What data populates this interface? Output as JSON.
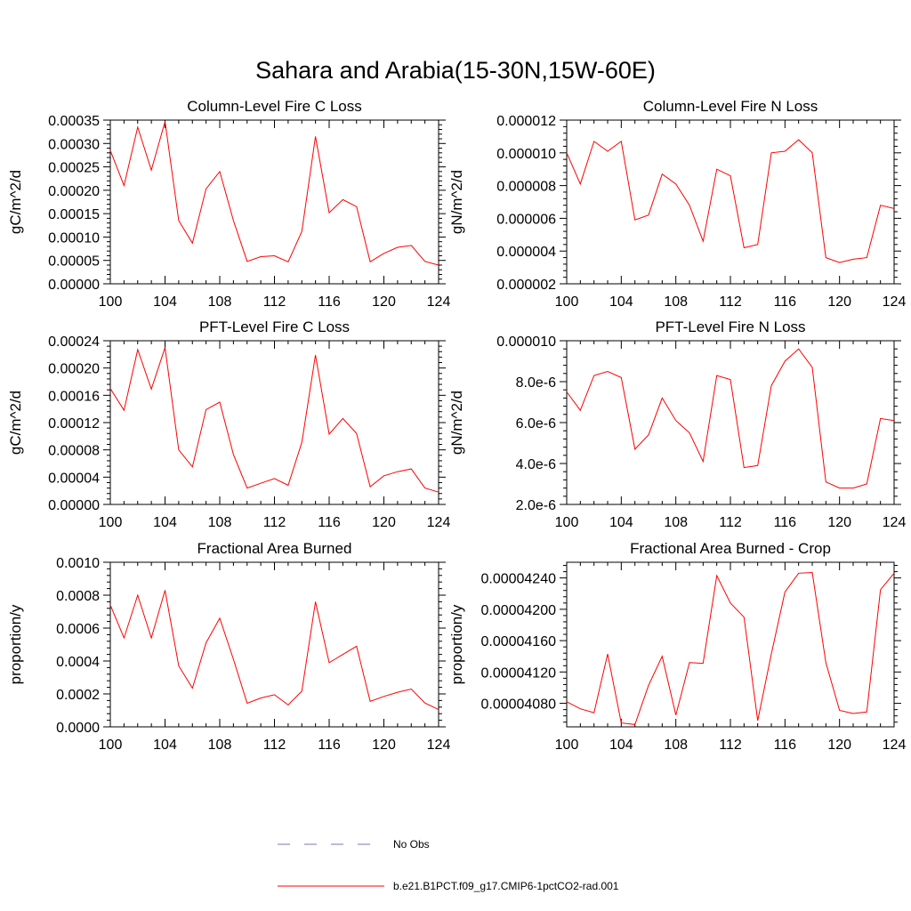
{
  "figure": {
    "title": "Sahara and Arabia(15-30N,15W-60E)",
    "legend": [
      {
        "label": "No Obs",
        "color": "#7777bb",
        "dashed": true
      },
      {
        "label": "b.e21.B1PCT.f09_g17.CMIP6-1pctCO2-rad.001",
        "color": "#ff0000",
        "dashed": false
      }
    ]
  },
  "chart_data": [
    {
      "type": "line",
      "title": "Column-Level Fire C Loss",
      "ylabel": "gC/m^2/d",
      "xlim": [
        100,
        124
      ],
      "ylim": [
        0,
        0.00035
      ],
      "xticks": [
        100,
        104,
        108,
        112,
        116,
        120,
        124
      ],
      "xtick_labels": [
        "100",
        "104",
        "108",
        "112",
        "116",
        "120",
        "124"
      ],
      "yticks": [
        0,
        5e-05,
        0.0001,
        0.00015,
        0.0002,
        0.00025,
        0.0003,
        0.00035
      ],
      "ytick_labels": [
        "0.00000",
        "0.00005",
        "0.00010",
        "0.00015",
        "0.00020",
        "0.00025",
        "0.00030",
        "0.00035"
      ],
      "color": "#ff0000",
      "x": [
        100,
        101,
        102,
        103,
        104,
        105,
        106,
        107,
        108,
        109,
        110,
        111,
        112,
        113,
        114,
        115,
        116,
        117,
        118,
        119,
        120,
        121,
        122,
        123,
        124
      ],
      "values": [
        0.000285,
        0.00021,
        0.000335,
        0.000243,
        0.000347,
        0.000135,
        8.7e-05,
        0.000203,
        0.00024,
        0.000135,
        4.8e-05,
        5.8e-05,
        6e-05,
        4.7e-05,
        0.000112,
        0.000315,
        0.000152,
        0.00018,
        0.000165,
        4.7e-05,
        6.5e-05,
        7.8e-05,
        8.2e-05,
        4.8e-05,
        4e-05
      ]
    },
    {
      "type": "line",
      "title": "Column-Level Fire N Loss",
      "ylabel": "gN/m^2/d",
      "xlim": [
        100,
        124
      ],
      "ylim": [
        2e-06,
        1.2e-05
      ],
      "xticks": [
        100,
        104,
        108,
        112,
        116,
        120,
        124
      ],
      "xtick_labels": [
        "100",
        "104",
        "108",
        "112",
        "116",
        "120",
        "124"
      ],
      "yticks": [
        2e-06,
        4e-06,
        6e-06,
        8e-06,
        1e-05,
        1.2e-05
      ],
      "ytick_labels": [
        "0.000002",
        "0.000004",
        "0.000006",
        "0.000008",
        "0.000010",
        "0.000012"
      ],
      "color": "#ff0000",
      "x": [
        100,
        101,
        102,
        103,
        104,
        105,
        106,
        107,
        108,
        109,
        110,
        111,
        112,
        113,
        114,
        115,
        116,
        117,
        118,
        119,
        120,
        121,
        122,
        123,
        124
      ],
      "values": [
        1e-05,
        8.1e-06,
        1.07e-05,
        1.01e-05,
        1.07e-05,
        5.9e-06,
        6.2e-06,
        8.7e-06,
        8.1e-06,
        6.8e-06,
        4.6e-06,
        9e-06,
        8.6e-06,
        4.2e-06,
        4.4e-06,
        1e-05,
        1.01e-05,
        1.08e-05,
        1e-05,
        3.6e-06,
        3.3e-06,
        3.5e-06,
        3.6e-06,
        6.8e-06,
        6.6e-06
      ]
    },
    {
      "type": "line",
      "title": "PFT-Level Fire C Loss",
      "ylabel": "gC/m^2/d",
      "xlim": [
        100,
        124
      ],
      "ylim": [
        0,
        0.00024
      ],
      "xticks": [
        100,
        104,
        108,
        112,
        116,
        120,
        124
      ],
      "xtick_labels": [
        "100",
        "104",
        "108",
        "112",
        "116",
        "120",
        "124"
      ],
      "yticks": [
        0,
        4e-05,
        8e-05,
        0.00012,
        0.00016,
        0.0002,
        0.00024
      ],
      "ytick_labels": [
        "0.00000",
        "0.00004",
        "0.00008",
        "0.00012",
        "0.00016",
        "0.00020",
        "0.00024"
      ],
      "color": "#ff0000",
      "x": [
        100,
        101,
        102,
        103,
        104,
        105,
        106,
        107,
        108,
        109,
        110,
        111,
        112,
        113,
        114,
        115,
        116,
        117,
        118,
        119,
        120,
        121,
        122,
        123,
        124
      ],
      "values": [
        0.00017,
        0.000138,
        0.000227,
        0.000169,
        0.00023,
        8e-05,
        5.5e-05,
        0.000139,
        0.00015,
        7.3e-05,
        2.4e-05,
        3.1e-05,
        3.8e-05,
        2.8e-05,
        9.1e-05,
        0.000219,
        0.000103,
        0.000126,
        0.000104,
        2.6e-05,
        4.2e-05,
        4.8e-05,
        5.2e-05,
        2.4e-05,
        1.8e-05
      ]
    },
    {
      "type": "line",
      "title": "PFT-Level Fire N Loss",
      "ylabel": "gN/m^2/d",
      "xlim": [
        100,
        124
      ],
      "ylim": [
        2e-06,
        1e-05
      ],
      "xticks": [
        100,
        104,
        108,
        112,
        116,
        120,
        124
      ],
      "xtick_labels": [
        "100",
        "104",
        "108",
        "112",
        "116",
        "120",
        "124"
      ],
      "yticks": [
        2e-06,
        4e-06,
        6e-06,
        8e-06,
        1e-05
      ],
      "ytick_labels": [
        "2.0e-6",
        "4.0e-6",
        "6.0e-6",
        "8.0e-6",
        "0.000010"
      ],
      "color": "#ff0000",
      "x": [
        100,
        101,
        102,
        103,
        104,
        105,
        106,
        107,
        108,
        109,
        110,
        111,
        112,
        113,
        114,
        115,
        116,
        117,
        118,
        119,
        120,
        121,
        122,
        123,
        124
      ],
      "values": [
        7.5e-06,
        6.6e-06,
        8.3e-06,
        8.5e-06,
        8.2e-06,
        4.7e-06,
        5.4e-06,
        7.2e-06,
        6.1e-06,
        5.5e-06,
        4.1e-06,
        8.3e-06,
        8.1e-06,
        3.8e-06,
        3.9e-06,
        7.8e-06,
        9e-06,
        9.6e-06,
        8.7e-06,
        3.1e-06,
        2.8e-06,
        2.8e-06,
        3e-06,
        6.2e-06,
        6.1e-06
      ]
    },
    {
      "type": "line",
      "title": "Fractional Area Burned",
      "ylabel": "proportion/y",
      "xlim": [
        100,
        124
      ],
      "ylim": [
        0,
        0.001
      ],
      "xticks": [
        100,
        104,
        108,
        112,
        116,
        120,
        124
      ],
      "xtick_labels": [
        "100",
        "104",
        "108",
        "112",
        "116",
        "120",
        "124"
      ],
      "yticks": [
        0,
        0.0002,
        0.0004,
        0.0006,
        0.0008,
        0.001
      ],
      "ytick_labels": [
        "0.0000",
        "0.0002",
        "0.0004",
        "0.0006",
        "0.0008",
        "0.0010"
      ],
      "color": "#ff0000",
      "x": [
        100,
        101,
        102,
        103,
        104,
        105,
        106,
        107,
        108,
        109,
        110,
        111,
        112,
        113,
        114,
        115,
        116,
        117,
        118,
        119,
        120,
        121,
        122,
        123,
        124
      ],
      "values": [
        0.00074,
        0.00054,
        0.0008,
        0.00054,
        0.00083,
        0.00037,
        0.000235,
        0.00051,
        0.00066,
        0.00041,
        0.000143,
        0.000175,
        0.000195,
        0.000133,
        0.000217,
        0.00076,
        0.00039,
        0.00044,
        0.00049,
        0.000155,
        0.000185,
        0.00021,
        0.00023,
        0.000145,
        0.000105
      ]
    },
    {
      "type": "line",
      "title": "Fractional Area Burned - Crop",
      "ylabel": "proportion/y",
      "xlim": [
        100,
        124
      ],
      "ylim": [
        4.05e-05,
        4.26e-05
      ],
      "xticks": [
        100,
        104,
        108,
        112,
        116,
        120,
        124
      ],
      "xtick_labels": [
        "100",
        "104",
        "108",
        "112",
        "116",
        "120",
        "124"
      ],
      "yticks": [
        4.08e-05,
        4.12e-05,
        4.16e-05,
        4.2e-05,
        4.24e-05
      ],
      "ytick_labels": [
        "0.00004080",
        "0.00004120",
        "0.00004160",
        "0.00004200",
        "0.00004240"
      ],
      "color": "#ff0000",
      "x": [
        100,
        101,
        102,
        103,
        104,
        105,
        106,
        107,
        108,
        109,
        110,
        111,
        112,
        113,
        114,
        115,
        116,
        117,
        118,
        119,
        120,
        121,
        122,
        123,
        124
      ],
      "values": [
        4.082e-05,
        4.073e-05,
        4.068e-05,
        4.143e-05,
        4.055e-05,
        4.053e-05,
        4.103e-05,
        4.14e-05,
        4.065e-05,
        4.132e-05,
        4.131e-05,
        4.243e-05,
        4.208e-05,
        4.19e-05,
        4.058e-05,
        4.143e-05,
        4.222e-05,
        4.246e-05,
        4.247e-05,
        4.132e-05,
        4.071e-05,
        4.067e-05,
        4.069e-05,
        4.225e-05,
        4.246e-05
      ]
    }
  ]
}
